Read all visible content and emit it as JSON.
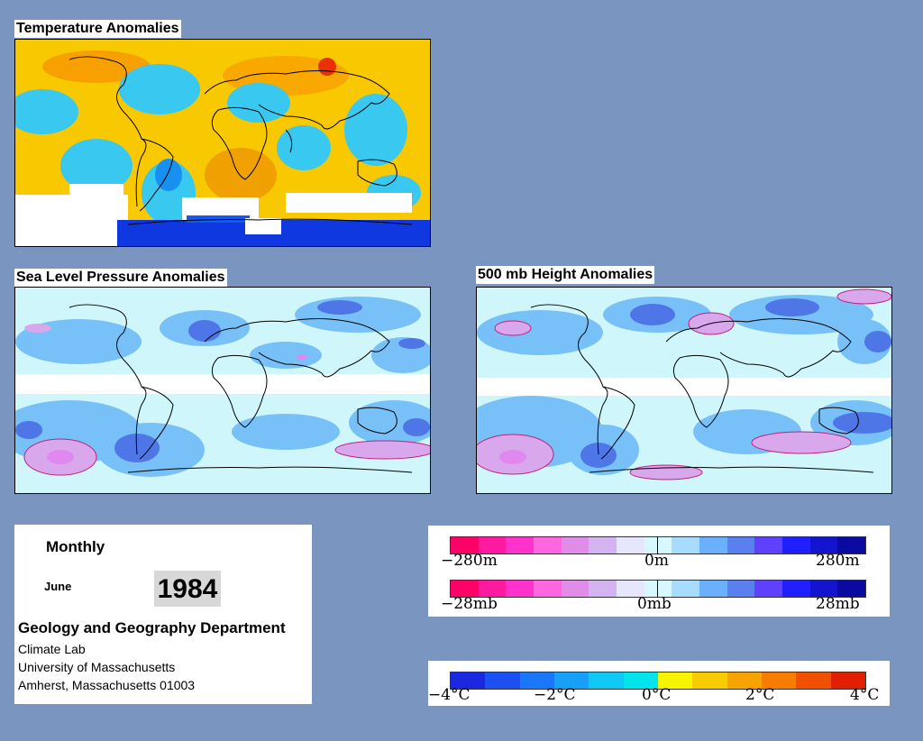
{
  "panels": {
    "temperature": {
      "title": "Temperature Anomalies"
    },
    "slp": {
      "title": "Sea Level Pressure Anomalies"
    },
    "height500": {
      "title": "500 mb Height Anomalies"
    }
  },
  "info": {
    "period": "Monthly",
    "month": "June",
    "year": "1984",
    "department": "Geology and Geography Department",
    "lab": "Climate Lab",
    "university": "University of Massachusetts",
    "city": "Amherst, Massachusetts 01003"
  },
  "legend_height": {
    "min_label": "−280m",
    "mid_label": "0m",
    "max_label": "280m",
    "colors": [
      "#ff0066",
      "#ff1aa0",
      "#ff33cc",
      "#ff66e0",
      "#e08ce8",
      "#d4b4f0",
      "#e6e6ff",
      "#d8f8ff",
      "#a8dcff",
      "#6ab0ff",
      "#5a80f0",
      "#6040ff",
      "#2020ff",
      "#1414d0",
      "#0a0aa0"
    ]
  },
  "legend_pressure": {
    "min_label": "−28mb",
    "mid_label": "0mb",
    "max_label": "28mb",
    "colors": [
      "#ff0066",
      "#ff1aa0",
      "#ff33cc",
      "#ff66e0",
      "#e08ce8",
      "#d4b4f0",
      "#e6e6ff",
      "#d8f8ff",
      "#a8dcff",
      "#6ab0ff",
      "#5a80f0",
      "#6040ff",
      "#2020ff",
      "#1414d0",
      "#0a0aa0"
    ]
  },
  "legend_temperature": {
    "labels": [
      "−4°C",
      "−2°C",
      "0°C",
      "2°C",
      "4°C"
    ],
    "colors": [
      "#1a28e0",
      "#1c50f0",
      "#1a78f8",
      "#16a0f8",
      "#10c8f4",
      "#00e4ec",
      "#f8f400",
      "#f8cc00",
      "#f8a400",
      "#f87c00",
      "#f05000",
      "#e02000"
    ]
  },
  "map_palette": {
    "temp_warm": "#f8c800",
    "temp_warm2": "#f8a800",
    "temp_cool": "#38c8f0",
    "temp_cool2": "#1890f0",
    "temp_cold": "#1038e0",
    "temp_hot": "#e83000",
    "anom_light": "#cff6fa",
    "anom_blue": "#78c0f8",
    "anom_blue2": "#4f76e6",
    "anom_pink": "#d9a8ec",
    "anom_pink2": "#e088f0",
    "missing": "#ffffff"
  }
}
